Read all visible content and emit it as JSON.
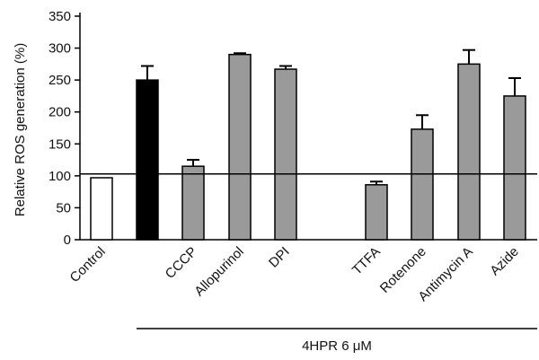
{
  "chart_data": {
    "type": "bar",
    "title": "",
    "xlabel": "",
    "ylabel": "Relative ROS generation (%)",
    "ylim": [
      0,
      350
    ],
    "yticks": [
      0,
      50,
      100,
      150,
      200,
      250,
      300,
      350
    ],
    "categories": [
      "Control",
      "",
      "CCCP",
      "Allopurinol",
      "DPI",
      "TTFA",
      "Rotenone",
      "Antimycin A",
      "Azide"
    ],
    "values": [
      97,
      250,
      115,
      290,
      267,
      86,
      173,
      275,
      225
    ],
    "errors": [
      0,
      22,
      10,
      2,
      5,
      5,
      22,
      22,
      28
    ],
    "fills": [
      "#ffffff",
      "#000000",
      "#9a9a9a",
      "#9a9a9a",
      "#9a9a9a",
      "#9a9a9a",
      "#9a9a9a",
      "#9a9a9a",
      "#9a9a9a"
    ],
    "reference_line": 103,
    "group_label": "4HPR 6 μM",
    "grid": false
  }
}
